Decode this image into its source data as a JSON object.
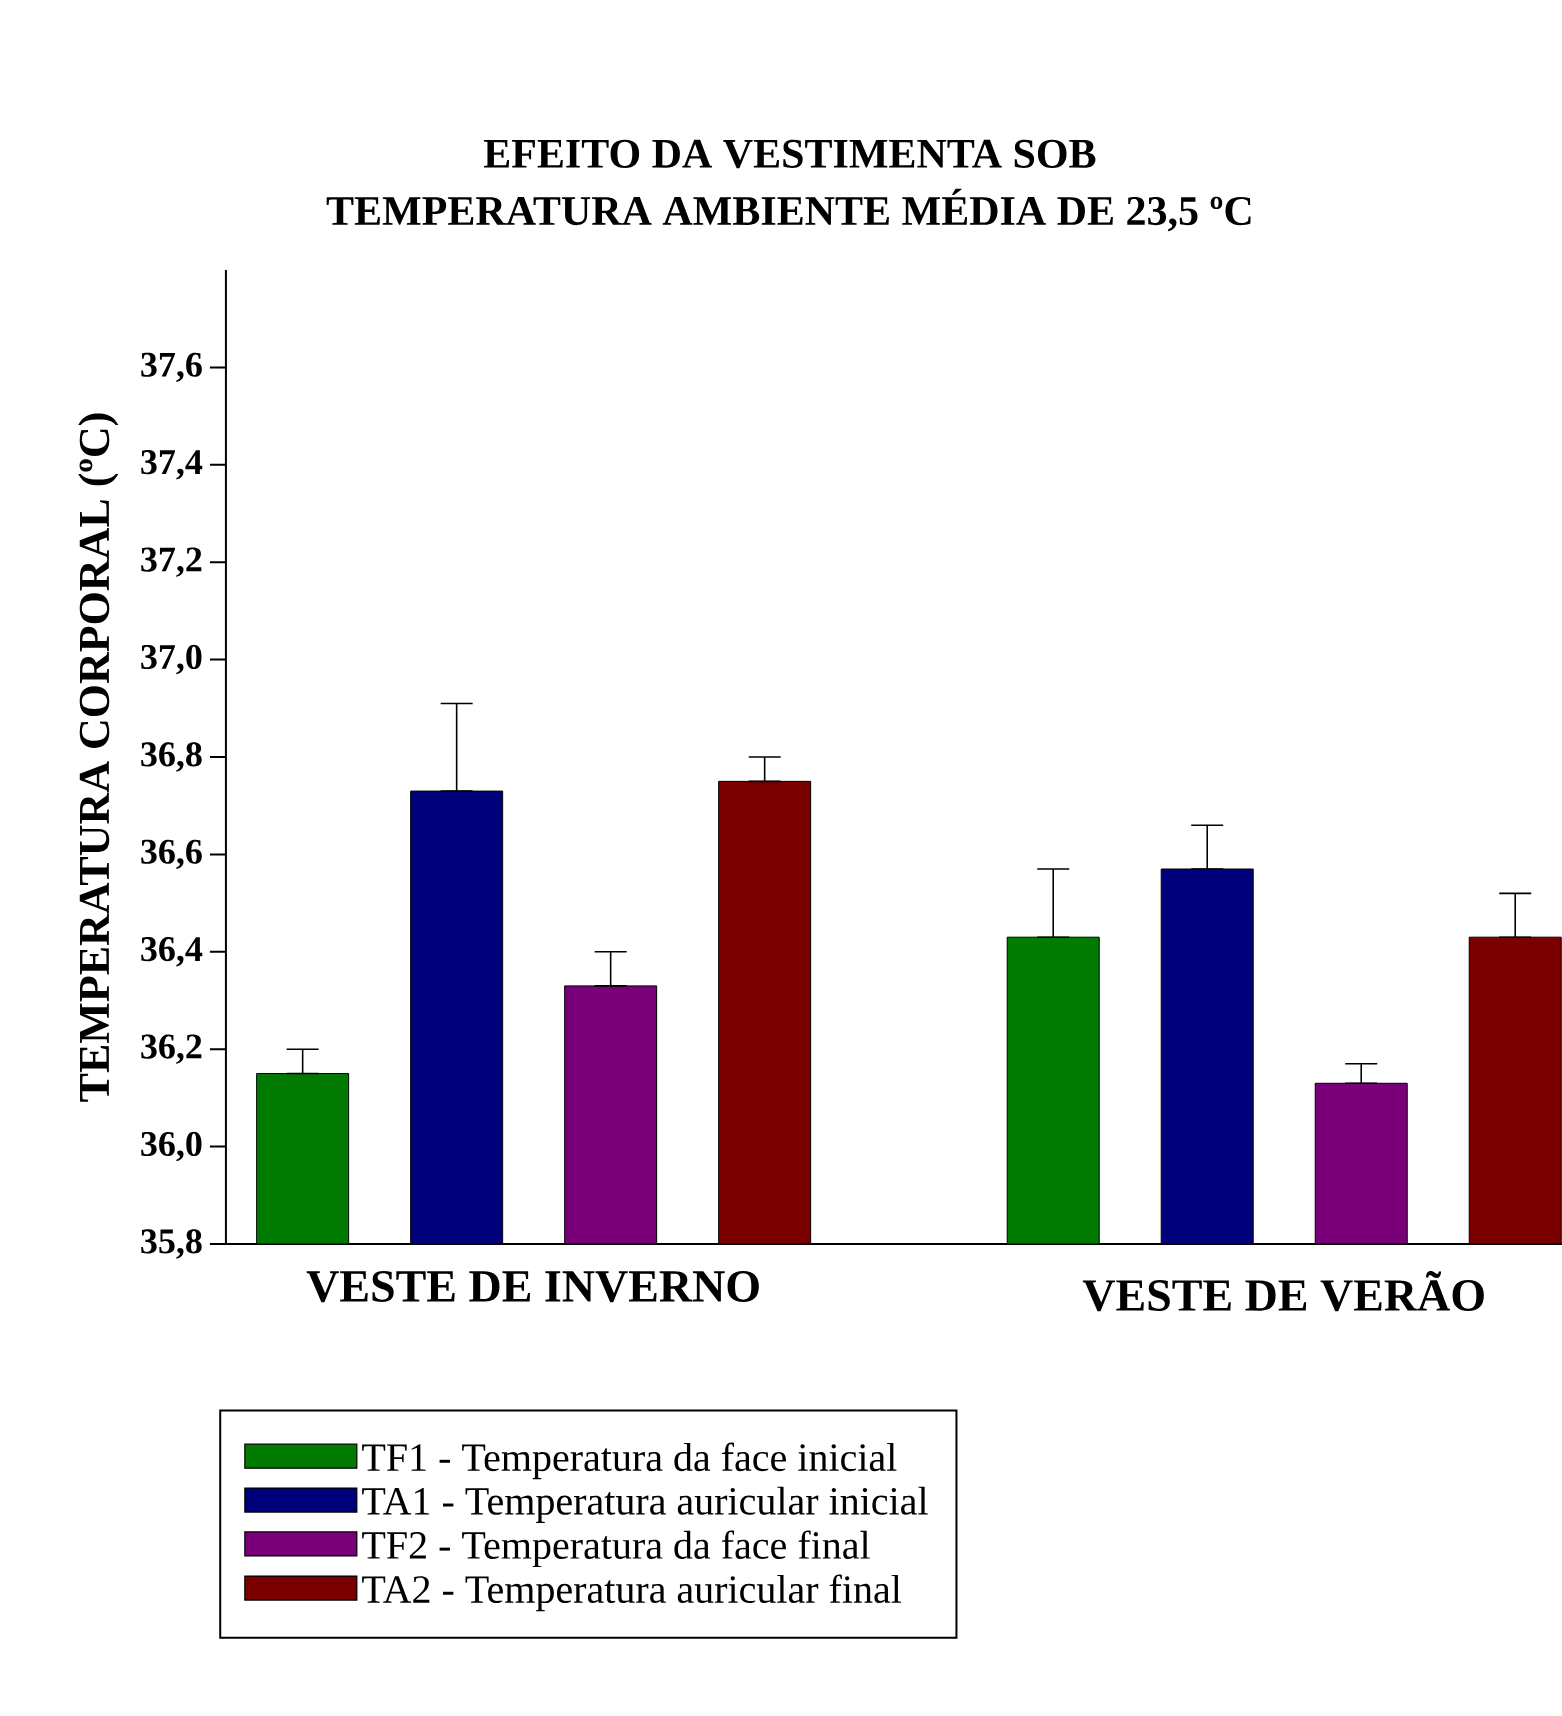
{
  "chart_data": {
    "type": "bar",
    "title": "EFEITO DA VESTIMENTA SOB",
    "subtitle": "TEMPERATURA AMBIENTE MÉDIA DE 23,5 ºC",
    "ylabel": "TEMPERATURA CORPORAL (ºC)",
    "categories": [
      "VESTE DE INVERNO",
      "VESTE DE VERÃO"
    ],
    "series": [
      {
        "name": "TF1 - Temperatura da face inicial",
        "color": "#007a00",
        "values": [
          36.15,
          36.43
        ],
        "errors": [
          [
            36.15,
            36.2
          ],
          [
            36.43,
            36.57
          ]
        ]
      },
      {
        "name": "TA1 - Temperatura auricular inicial",
        "color": "#00007a",
        "values": [
          36.73,
          36.57
        ],
        "errors": [
          [
            36.73,
            36.91
          ],
          [
            36.57,
            36.66
          ]
        ]
      },
      {
        "name": "TF2 - Temperatura da face final",
        "color": "#7a007a",
        "values": [
          36.33,
          36.13
        ],
        "errors": [
          [
            36.33,
            36.4
          ],
          [
            36.13,
            36.17
          ]
        ]
      },
      {
        "name": "TA2 - Temperatura auricular final",
        "color": "#7a0000",
        "values": [
          36.75,
          36.43
        ],
        "errors": [
          [
            36.75,
            36.8
          ],
          [
            36.43,
            36.52
          ]
        ]
      }
    ],
    "ylim": [
      35.8,
      37.8
    ],
    "yticks": [
      {
        "value": 35.8,
        "label": "35,8"
      },
      {
        "value": 36.0,
        "label": "36,0"
      },
      {
        "value": 36.2,
        "label": "36,2"
      },
      {
        "value": 36.4,
        "label": "36,4"
      },
      {
        "value": 36.6,
        "label": "36,6"
      },
      {
        "value": 36.8,
        "label": "36,8"
      },
      {
        "value": 37.0,
        "label": "37,0"
      },
      {
        "value": 37.2,
        "label": "37,2"
      },
      {
        "value": 37.4,
        "label": "37,4"
      },
      {
        "value": 37.6,
        "label": "37,6"
      }
    ],
    "legend": "bottom"
  }
}
